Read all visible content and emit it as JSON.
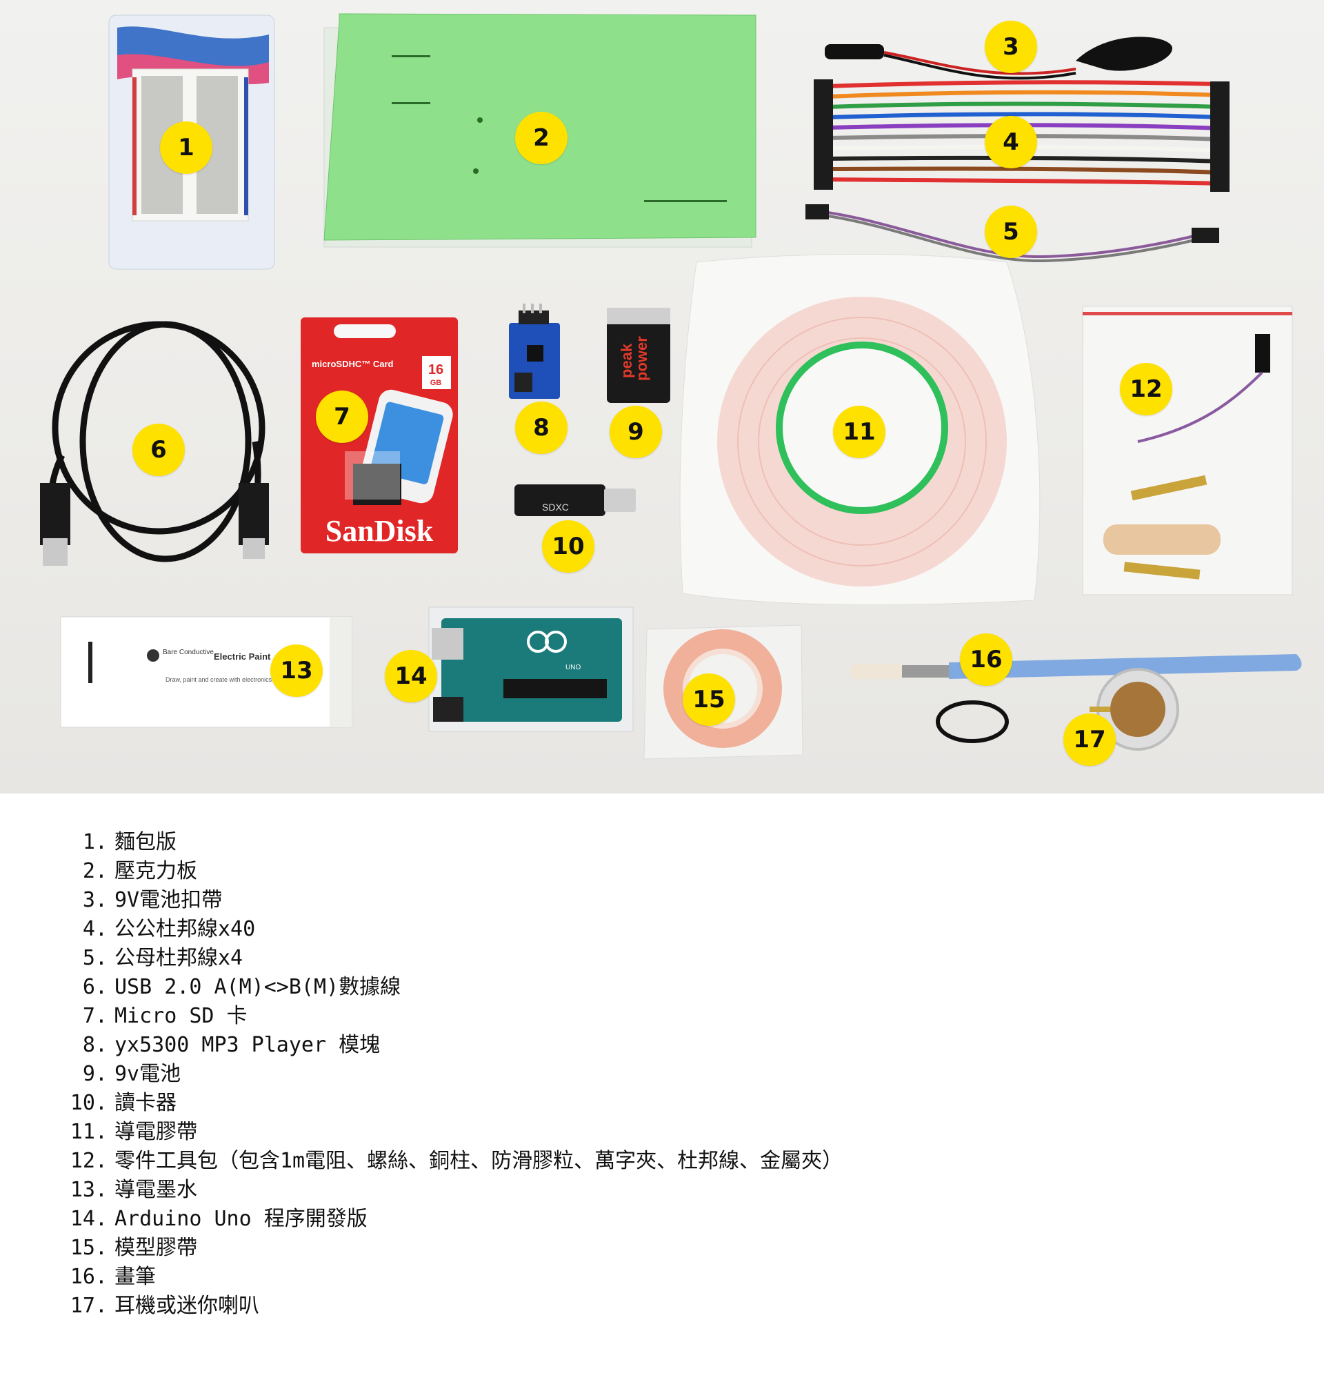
{
  "badges": [
    "1",
    "2",
    "3",
    "4",
    "5",
    "6",
    "7",
    "8",
    "9",
    "10",
    "11",
    "12",
    "13",
    "14",
    "15",
    "16",
    "17"
  ],
  "product_text": {
    "sd_card_type": "microSDHC™ Card",
    "sd_card_capacity": "16",
    "sd_card_unit": "GB",
    "sd_brand": "SanDisk",
    "battery_brand_line1": "peak",
    "battery_brand_line2": "power",
    "paint_brand": "Bare Conductive",
    "paint_product": "Electric Paint",
    "paint_tagline": "Draw, paint and create with electronics",
    "card_reader_label": "SDXC",
    "arduino_label": "UNO"
  },
  "legend": [
    {
      "num": "1.",
      "text": "麵包版"
    },
    {
      "num": "2.",
      "text": "壓克力板"
    },
    {
      "num": "3.",
      "text": "9V電池扣帶"
    },
    {
      "num": "4.",
      "text": "公公杜邦線x40"
    },
    {
      "num": "5.",
      "text": "公母杜邦線x4"
    },
    {
      "num": "6.",
      "text": "USB 2.0 A(M)<>B(M)數據線"
    },
    {
      "num": "7.",
      "text": "Micro SD 卡"
    },
    {
      "num": "8.",
      "text": "yx5300 MP3 Player 模塊"
    },
    {
      "num": "9.",
      "text": "9v電池"
    },
    {
      "num": "10.",
      "text": "讀卡器"
    },
    {
      "num": "11.",
      "text": "導電膠帶"
    },
    {
      "num": "12.",
      "text": "零件工具包（包含1m電阻、螺絲、銅柱、防滑膠粒、萬字夾、杜邦線、金屬夾）"
    },
    {
      "num": "13.",
      "text": "導電墨水"
    },
    {
      "num": "14.",
      "text": "Arduino Uno 程序開發版"
    },
    {
      "num": "15.",
      "text": "模型膠帶"
    },
    {
      "num": "16.",
      "text": "畫筆"
    },
    {
      "num": "17.",
      "text": "耳機或迷你喇叭"
    }
  ]
}
